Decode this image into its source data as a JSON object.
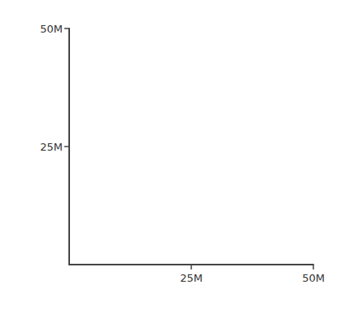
{
  "chart_data": {
    "type": "scatter",
    "x": [],
    "values": [],
    "xlim": [
      0,
      50
    ],
    "xticks": [
      {
        "value": 25,
        "label": "25M"
      },
      {
        "value": 50,
        "label": "50M"
      }
    ],
    "ylim": [
      0,
      50
    ],
    "yticks": [
      {
        "value": 25,
        "label": "25M"
      },
      {
        "value": 50,
        "label": "50M"
      }
    ],
    "grid": false
  }
}
